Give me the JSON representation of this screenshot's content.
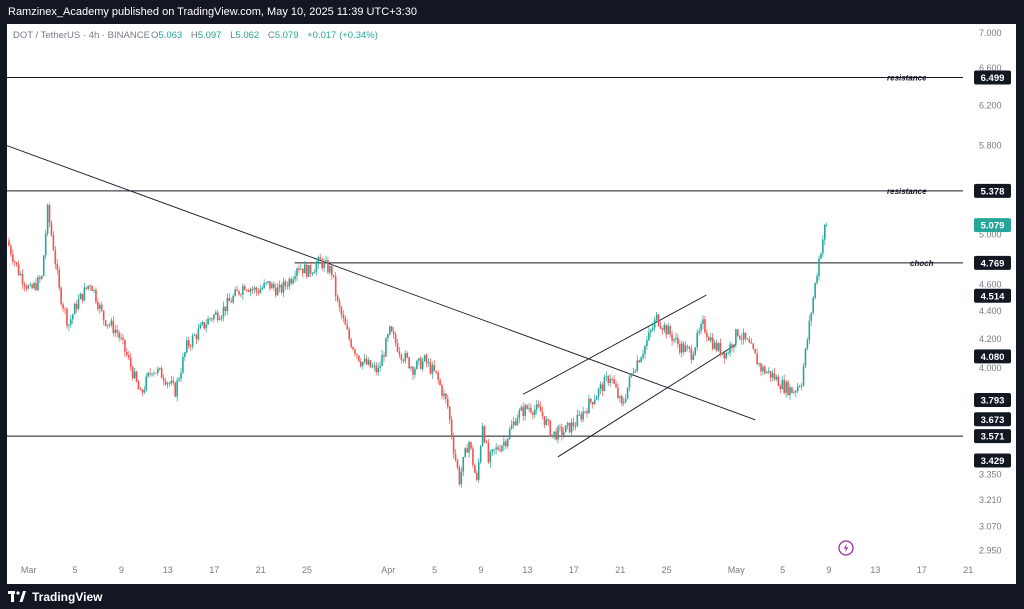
{
  "header": {
    "publish_line": "Ramzinex_Academy published on TradingView.com, May 10, 2025 11:39 UTC+3:30"
  },
  "footer": {
    "brand": "TradingView"
  },
  "chart_data": {
    "type": "candlestick",
    "symbol_line": "DOT / TetherUS · 4h · BINANCE",
    "ohlc": {
      "o_label": "O",
      "o_value": "5.063",
      "h_label": "H",
      "h_value": "5.097",
      "l_label": "L",
      "l_value": "5.062",
      "c_label": "C",
      "c_value": "5.079",
      "change": "+0.017 (+0.34%)"
    },
    "colors": {
      "up": "#26a69a",
      "down": "#ef5350",
      "line": "#131722",
      "price_tag": "#26a69a"
    },
    "y_scale": "log",
    "ylim": [
      2.9,
      7.1
    ],
    "y_ticks": [
      "7.000",
      "6.600",
      "6.200",
      "5.800",
      "5.000",
      "4.600",
      "4.400",
      "4.200",
      "4.000",
      "3.350",
      "3.210",
      "3.070",
      "2.950"
    ],
    "x_ticks": [
      {
        "label": "Mar",
        "day": 1
      },
      {
        "label": "5",
        "day": 5
      },
      {
        "label": "9",
        "day": 9
      },
      {
        "label": "13",
        "day": 13
      },
      {
        "label": "17",
        "day": 17
      },
      {
        "label": "21",
        "day": 21
      },
      {
        "label": "25",
        "day": 25
      },
      {
        "label": "Apr",
        "day": 32
      },
      {
        "label": "5",
        "day": 36
      },
      {
        "label": "9",
        "day": 40
      },
      {
        "label": "13",
        "day": 44
      },
      {
        "label": "17",
        "day": 48
      },
      {
        "label": "21",
        "day": 52
      },
      {
        "label": "25",
        "day": 56
      },
      {
        "label": "May",
        "day": 62
      },
      {
        "label": "5",
        "day": 66
      },
      {
        "label": "9",
        "day": 70
      },
      {
        "label": "13",
        "day": 74
      },
      {
        "label": "17",
        "day": 78
      },
      {
        "label": "21",
        "day": 82
      }
    ],
    "xlim": [
      0.0,
      82.5
    ],
    "levels": [
      {
        "name": "resistance",
        "value": 6.499,
        "label": "6.499"
      },
      {
        "name": "resistance",
        "value": 5.378,
        "label": "5.378"
      },
      {
        "name": "choch",
        "value": 4.769,
        "label": "4.769"
      },
      {
        "name": "",
        "value": 3.571,
        "label": "3.571"
      }
    ],
    "price_tags": [
      {
        "value": 5.079,
        "label": "5.079",
        "current": true
      },
      {
        "value": 4.514,
        "label": "4.514"
      },
      {
        "value": 4.08,
        "label": "4.080"
      },
      {
        "value": 3.793,
        "label": "3.793"
      },
      {
        "value": 3.673,
        "label": "3.673"
      },
      {
        "value": 3.429,
        "label": "3.429"
      }
    ],
    "trendlines": [
      {
        "x1": 0.0,
        "y1": 5.8,
        "x2": 64.5,
        "y2": 3.67
      },
      {
        "x1": 44.5,
        "y1": 3.83,
        "x2": 60.3,
        "y2": 4.52
      },
      {
        "x1": 47.5,
        "y1": 3.45,
        "x2": 62.8,
        "y2": 4.16
      },
      {
        "x1": 24.8,
        "y1": 4.769,
        "x2": 82.5,
        "y2": 4.769
      }
    ],
    "close_anchors": [
      [
        0.0,
        4.95
      ],
      [
        1.0,
        4.7
      ],
      [
        2.0,
        4.55
      ],
      [
        3.0,
        4.65
      ],
      [
        3.5,
        5.2
      ],
      [
        4.0,
        4.9
      ],
      [
        4.5,
        4.55
      ],
      [
        5.3,
        4.3
      ],
      [
        6.0,
        4.45
      ],
      [
        7.2,
        4.62
      ],
      [
        8.3,
        4.35
      ],
      [
        9.5,
        4.25
      ],
      [
        10.5,
        4.05
      ],
      [
        11.5,
        3.82
      ],
      [
        12.5,
        4.0
      ],
      [
        13.5,
        3.95
      ],
      [
        14.5,
        3.85
      ],
      [
        15.5,
        4.15
      ],
      [
        16.5,
        4.25
      ],
      [
        17.5,
        4.35
      ],
      [
        18.5,
        4.4
      ],
      [
        19.5,
        4.5
      ],
      [
        20.5,
        4.6
      ],
      [
        21.5,
        4.55
      ],
      [
        22.5,
        4.6
      ],
      [
        23.5,
        4.55
      ],
      [
        24.5,
        4.65
      ],
      [
        25.0,
        4.75
      ],
      [
        26.0,
        4.7
      ],
      [
        27.0,
        4.78
      ],
      [
        28.0,
        4.7
      ],
      [
        28.5,
        4.45
      ],
      [
        29.5,
        4.2
      ],
      [
        30.5,
        4.05
      ],
      [
        31.5,
        4.0
      ],
      [
        32.0,
        3.98
      ],
      [
        33.0,
        4.25
      ],
      [
        34.0,
        4.1
      ],
      [
        35.0,
        4.0
      ],
      [
        36.0,
        4.05
      ],
      [
        37.0,
        3.95
      ],
      [
        38.0,
        3.75
      ],
      [
        38.5,
        3.5
      ],
      [
        39.0,
        3.32
      ],
      [
        39.8,
        3.55
      ],
      [
        40.5,
        3.3
      ],
      [
        41.0,
        3.65
      ],
      [
        41.5,
        3.42
      ],
      [
        42.0,
        3.48
      ],
      [
        43.0,
        3.55
      ],
      [
        44.0,
        3.7
      ],
      [
        45.0,
        3.75
      ],
      [
        46.0,
        3.72
      ],
      [
        47.0,
        3.58
      ],
      [
        48.0,
        3.6
      ],
      [
        49.0,
        3.65
      ],
      [
        50.0,
        3.75
      ],
      [
        51.0,
        3.85
      ],
      [
        52.0,
        3.95
      ],
      [
        53.0,
        3.75
      ],
      [
        54.0,
        4.0
      ],
      [
        55.0,
        4.15
      ],
      [
        56.0,
        4.35
      ],
      [
        57.0,
        4.25
      ],
      [
        58.0,
        4.15
      ],
      [
        59.0,
        4.1
      ],
      [
        60.0,
        4.3
      ],
      [
        61.0,
        4.15
      ],
      [
        62.0,
        4.1
      ],
      [
        63.0,
        4.25
      ],
      [
        64.0,
        4.15
      ],
      [
        65.0,
        4.0
      ],
      [
        66.0,
        3.95
      ],
      [
        67.0,
        3.88
      ],
      [
        67.8,
        3.85
      ],
      [
        68.5,
        3.92
      ],
      [
        69.0,
        4.2
      ],
      [
        69.5,
        4.5
      ],
      [
        70.0,
        4.8
      ],
      [
        70.5,
        5.05
      ],
      [
        70.8,
        5.079
      ]
    ]
  }
}
